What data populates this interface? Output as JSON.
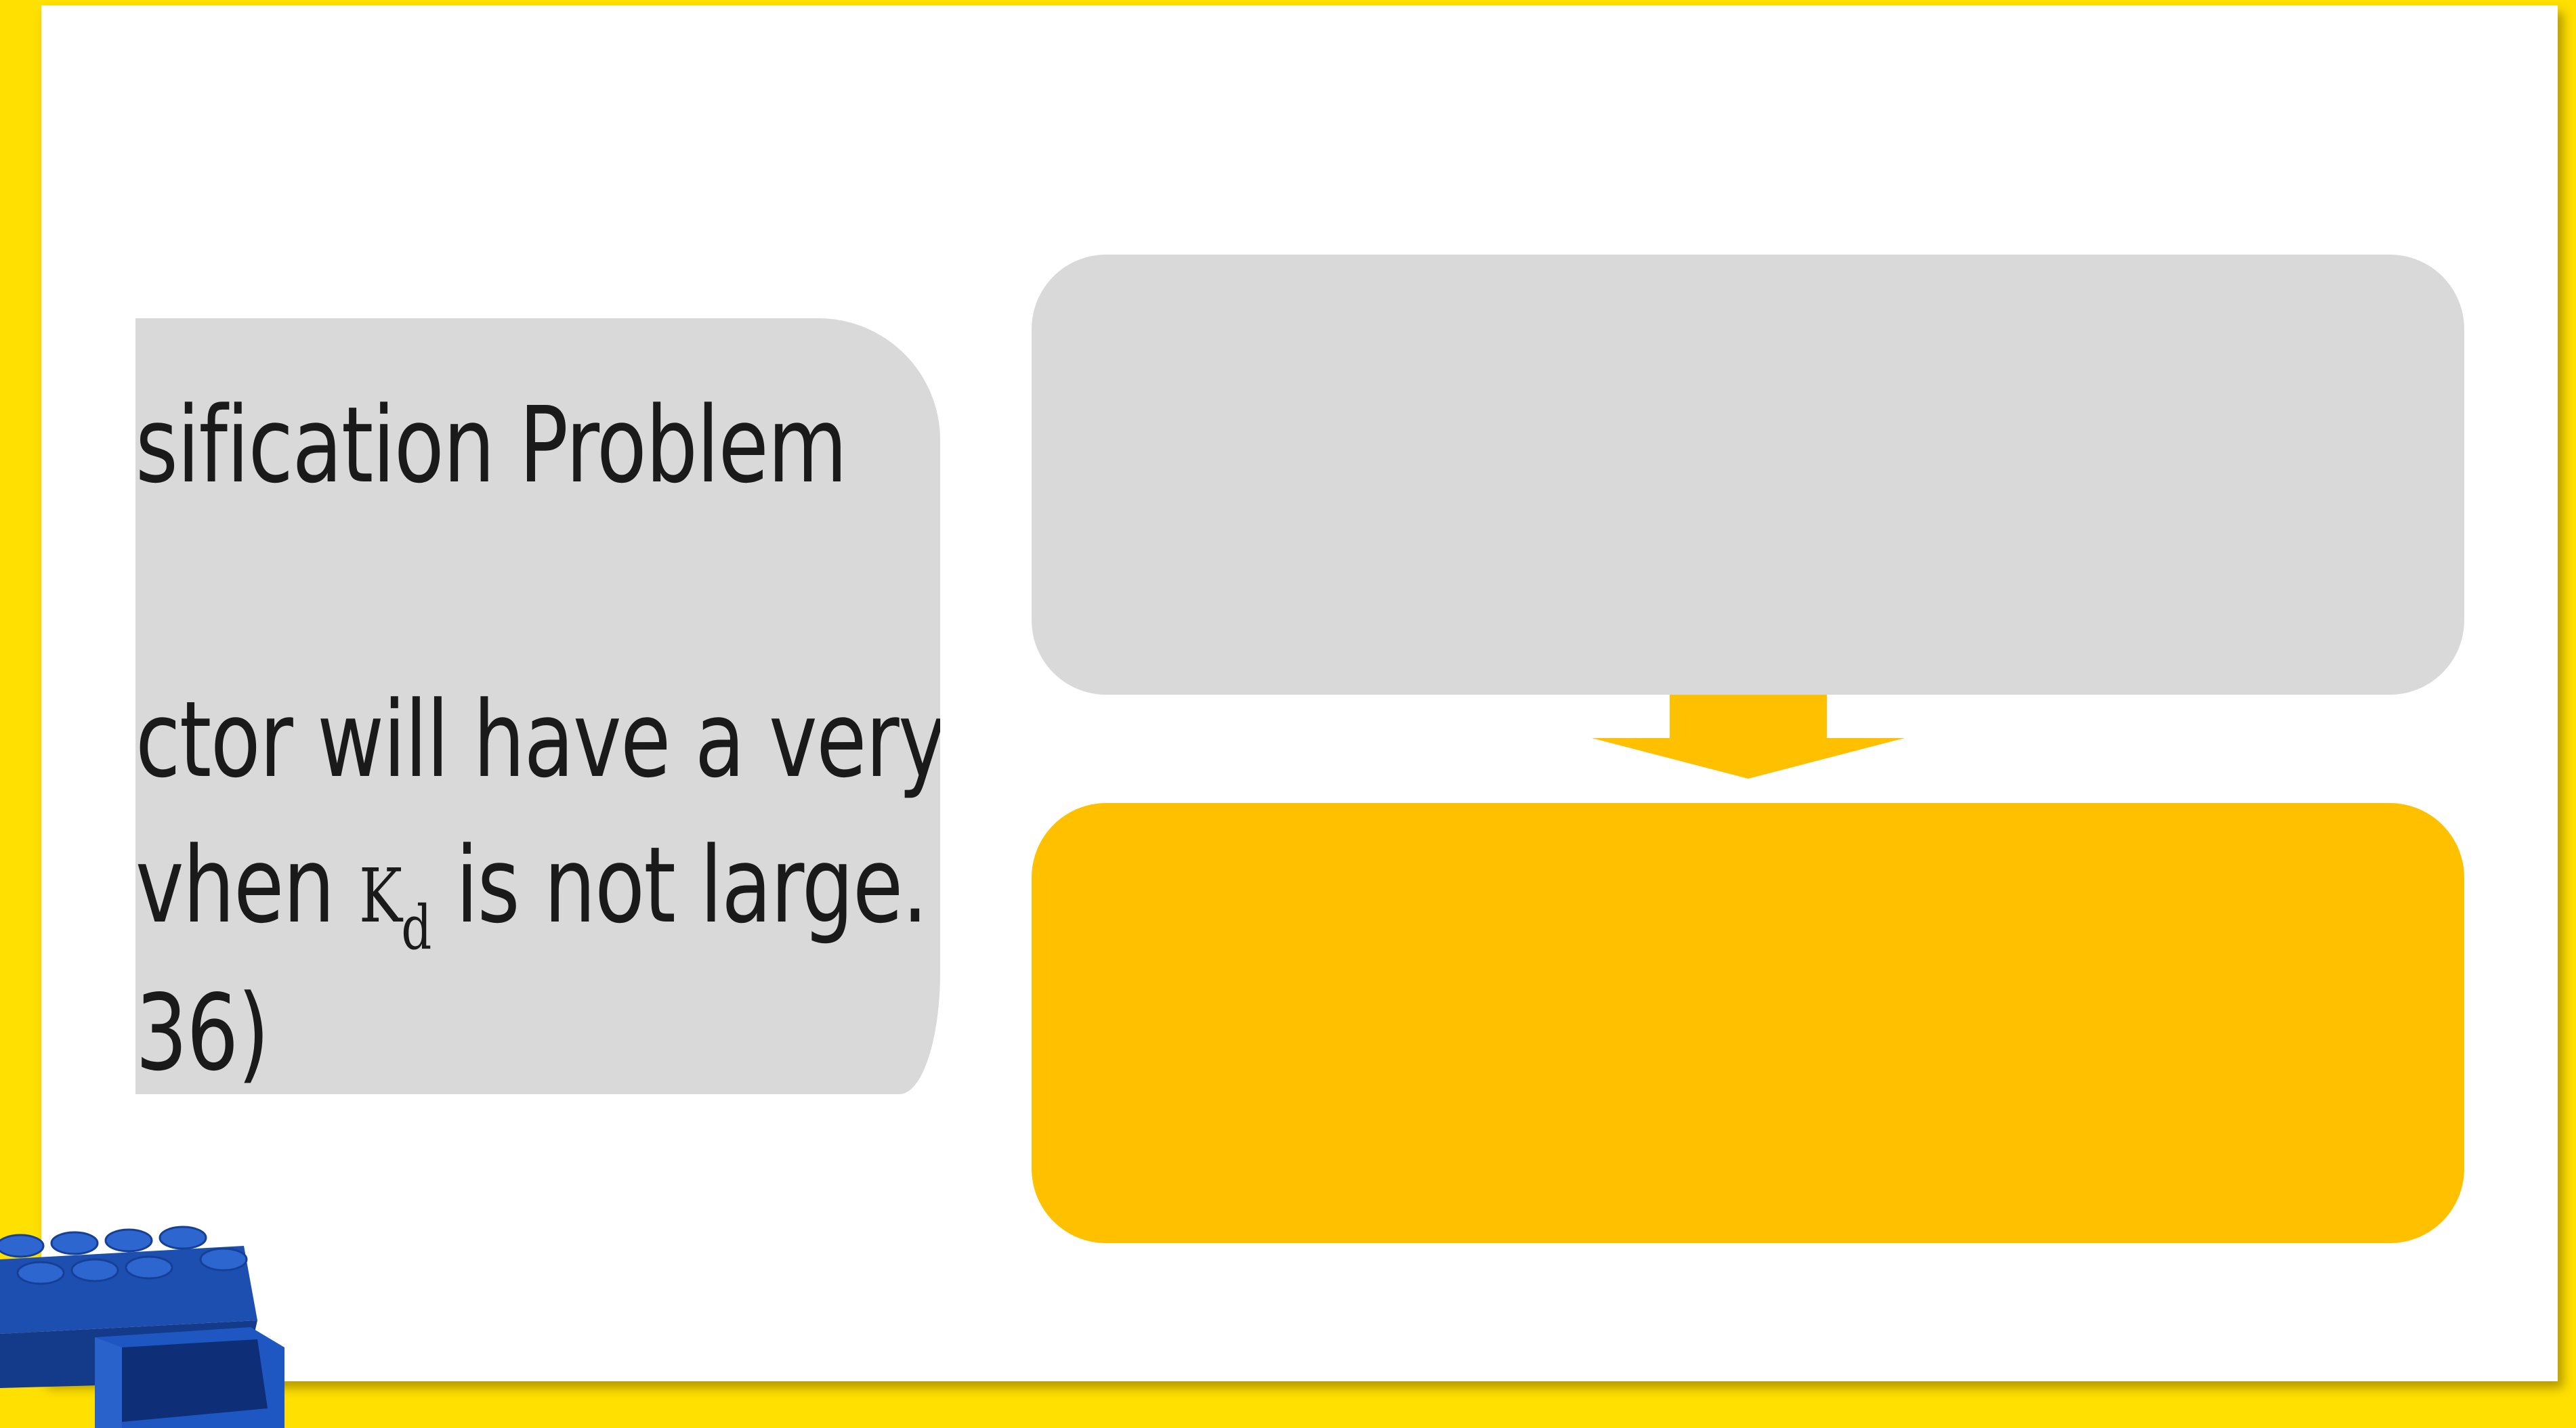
{
  "slide": {
    "left_panel": {
      "line1": "sification Problem",
      "line2": "ctor will have a very",
      "line3_before": "vhen ",
      "line3_symbol": "K",
      "line3_subscript": "d",
      "line3_after": " is not large.",
      "line4": "36)"
    },
    "flow": {
      "top_box_color": "#D9D9D9",
      "bottom_box_color": "#FFC000",
      "arrow_color": "#FFC000"
    },
    "decoration": {
      "image": "lego-brick-storage-icon",
      "frame_color": "#FFE000"
    }
  }
}
